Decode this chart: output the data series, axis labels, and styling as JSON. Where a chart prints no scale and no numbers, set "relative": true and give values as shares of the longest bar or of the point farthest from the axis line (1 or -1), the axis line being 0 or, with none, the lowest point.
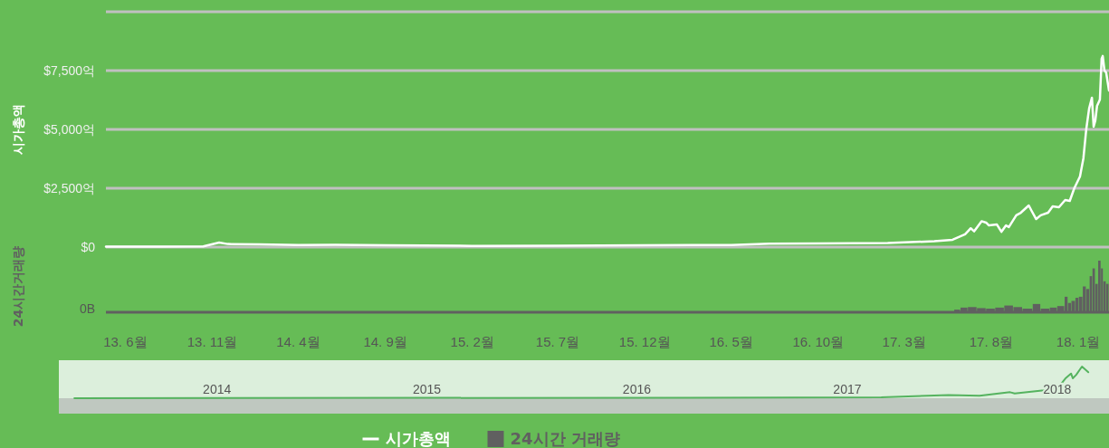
{
  "chart_data": [
    {
      "type": "line",
      "ylabel": "시가총액",
      "xlim": [
        "2013-04-28",
        "2018-02-24"
      ],
      "ylim": [
        0,
        10000
      ],
      "yticks": [
        {
          "value": 0,
          "label": "$0"
        },
        {
          "value": 2500,
          "label": "$2,500억"
        },
        {
          "value": 5000,
          "label": "$5,000억"
        },
        {
          "value": 7500,
          "label": "$7,500억"
        },
        {
          "value": 10000,
          "label": null
        }
      ],
      "grid": "y",
      "tick_labels": "y",
      "legend": "bottom",
      "series": [
        {
          "name": "시가총액",
          "color": "#ffffff",
          "x": [
            "2013-04-28",
            "2013-08-01",
            "2013-10-16",
            "2013-11-13",
            "2013-11-28",
            "2014-01-22",
            "2014-04-01",
            "2014-06-05",
            "2014-09-01",
            "2015-02-01",
            "2015-07-01",
            "2015-12-01",
            "2016-05-01",
            "2016-07-07",
            "2016-10-01",
            "2017-01-31",
            "2017-03-01",
            "2017-04-23",
            "2017-05-25",
            "2017-06-16",
            "2017-06-26",
            "2017-07-02",
            "2017-07-15",
            "2017-07-23",
            "2017-07-28",
            "2017-08-11",
            "2017-08-19",
            "2017-08-27",
            "2017-09-01",
            "2017-09-14",
            "2017-09-22",
            "2017-10-06",
            "2017-10-11",
            "2017-10-19",
            "2017-10-27",
            "2017-11-09",
            "2017-11-17",
            "2017-11-28",
            "2017-12-09",
            "2017-12-17",
            "2017-12-25",
            "2018-01-04",
            "2018-01-10",
            "2018-01-15",
            "2018-01-20",
            "2018-01-25",
            "2018-01-28",
            "2018-01-31",
            "2018-02-03",
            "2018-02-08",
            "2018-02-11",
            "2018-02-13",
            "2018-02-16",
            "2018-02-19",
            "2018-02-24"
          ],
          "values": [
            20,
            20,
            30,
            190,
            130,
            120,
            90,
            100,
            80,
            50,
            60,
            80,
            90,
            140,
            150,
            170,
            200,
            250,
            310,
            540,
            800,
            670,
            1100,
            1040,
            920,
            960,
            650,
            920,
            850,
            1350,
            1460,
            1770,
            1540,
            1190,
            1350,
            1460,
            1730,
            1690,
            2000,
            1960,
            2500,
            3000,
            3770,
            5000,
            5880,
            6350,
            5120,
            5380,
            6000,
            6270,
            8000,
            8120,
            7500,
            7420,
            6650
          ]
        }
      ]
    },
    {
      "type": "bar",
      "ylabel": "24시간거래량",
      "relative": true,
      "xlim": [
        "2013-04-28",
        "2018-02-24"
      ],
      "xticks": [
        {
          "value": "2013-06-01",
          "label": "13. 6월"
        },
        {
          "value": "2013-11-01",
          "label": "13. 11월"
        },
        {
          "value": "2014-04-01",
          "label": "14. 4월"
        },
        {
          "value": "2014-09-01",
          "label": "14. 9월"
        },
        {
          "value": "2015-02-01",
          "label": "15. 2월"
        },
        {
          "value": "2015-07-01",
          "label": "15. 7월"
        },
        {
          "value": "2015-12-01",
          "label": "15. 12월"
        },
        {
          "value": "2016-05-01",
          "label": "16. 5월"
        },
        {
          "value": "2016-10-01",
          "label": "16. 10월"
        },
        {
          "value": "2017-03-01",
          "label": "17. 3월"
        },
        {
          "value": "2017-08-01",
          "label": "17. 8월"
        },
        {
          "value": "2018-01-01",
          "label": "18. 1월"
        }
      ],
      "tick_labels": "x",
      "legend": "bottom",
      "annotations": [
        "0B"
      ],
      "series": [
        {
          "name": "24시간 거래량",
          "color": "#606060",
          "x": [
            "2017-05-28",
            "2017-06-08",
            "2017-06-21",
            "2017-07-07",
            "2017-07-23",
            "2017-08-08",
            "2017-08-24",
            "2017-09-09",
            "2017-09-25",
            "2017-10-13",
            "2017-10-27",
            "2017-11-12",
            "2017-11-25",
            "2017-12-08",
            "2017-12-14",
            "2017-12-20",
            "2017-12-27",
            "2018-01-02",
            "2018-01-09",
            "2018-01-15",
            "2018-01-21",
            "2018-01-26",
            "2018-01-31",
            "2018-02-05",
            "2018-02-10",
            "2018-02-14",
            "2018-02-19"
          ],
          "values": [
            0.05,
            0.09,
            0.1,
            0.08,
            0.07,
            0.09,
            0.13,
            0.1,
            0.07,
            0.16,
            0.07,
            0.09,
            0.12,
            0.3,
            0.18,
            0.22,
            0.28,
            0.3,
            0.5,
            0.45,
            0.7,
            0.85,
            0.55,
            1.0,
            0.85,
            0.6,
            0.55
          ]
        }
      ]
    },
    {
      "type": "line",
      "relative": true,
      "xlim": [
        "2013-04-01",
        "2018-04-01"
      ],
      "xticks": [
        {
          "value": "2014-01-01",
          "label": "2014"
        },
        {
          "value": "2015-01-01",
          "label": "2015"
        },
        {
          "value": "2016-01-01",
          "label": "2016"
        },
        {
          "value": "2017-01-01",
          "label": "2017"
        },
        {
          "value": "2018-01-01",
          "label": "2018"
        }
      ],
      "tick_labels": "x",
      "series": [
        {
          "color": "#55b35f",
          "x": [
            "2013-04-28",
            "2016-10-01",
            "2017-03-01",
            "2017-06-26",
            "2017-08-19",
            "2017-10-11",
            "2017-10-19",
            "2017-12-09",
            "2018-01-04",
            "2018-01-15",
            "2018-01-25",
            "2018-01-28",
            "2018-02-03",
            "2018-02-13",
            "2018-02-24"
          ],
          "values": [
            0,
            0.02,
            0.03,
            0.1,
            0.08,
            0.19,
            0.15,
            0.25,
            0.37,
            0.62,
            0.78,
            0.63,
            0.74,
            1.0,
            0.82
          ]
        }
      ]
    }
  ]
}
